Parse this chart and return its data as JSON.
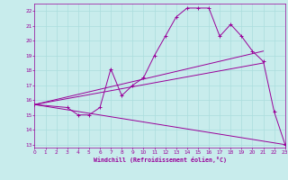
{
  "xlabel": "Windchill (Refroidissement éolien,°C)",
  "bg_color": "#c8ecec",
  "line_color": "#990099",
  "grid_color": "#aadddd",
  "xlim": [
    0,
    23
  ],
  "ylim": [
    12.8,
    22.5
  ],
  "xticks": [
    0,
    1,
    2,
    3,
    4,
    5,
    6,
    7,
    8,
    9,
    10,
    11,
    12,
    13,
    14,
    15,
    16,
    17,
    18,
    19,
    20,
    21,
    22,
    23
  ],
  "yticks": [
    13,
    14,
    15,
    16,
    17,
    18,
    19,
    20,
    21,
    22
  ],
  "series": [
    {
      "x": [
        0,
        3,
        4,
        5,
        6,
        7,
        8,
        9,
        10,
        11,
        12,
        13,
        14,
        15,
        16,
        17,
        18,
        19,
        20,
        21,
        22,
        23
      ],
      "y": [
        15.7,
        15.5,
        15.0,
        15.0,
        15.5,
        18.1,
        16.3,
        17.0,
        17.5,
        19.0,
        20.3,
        21.6,
        22.2,
        22.2,
        22.2,
        20.3,
        21.1,
        20.3,
        19.3,
        18.6,
        15.2,
        13.0
      ],
      "marker": true
    },
    {
      "x": [
        0,
        21
      ],
      "y": [
        15.7,
        19.3
      ],
      "marker": false
    },
    {
      "x": [
        0,
        21
      ],
      "y": [
        15.7,
        18.5
      ],
      "marker": false
    },
    {
      "x": [
        0,
        23
      ],
      "y": [
        15.7,
        13.0
      ],
      "marker": false
    }
  ]
}
